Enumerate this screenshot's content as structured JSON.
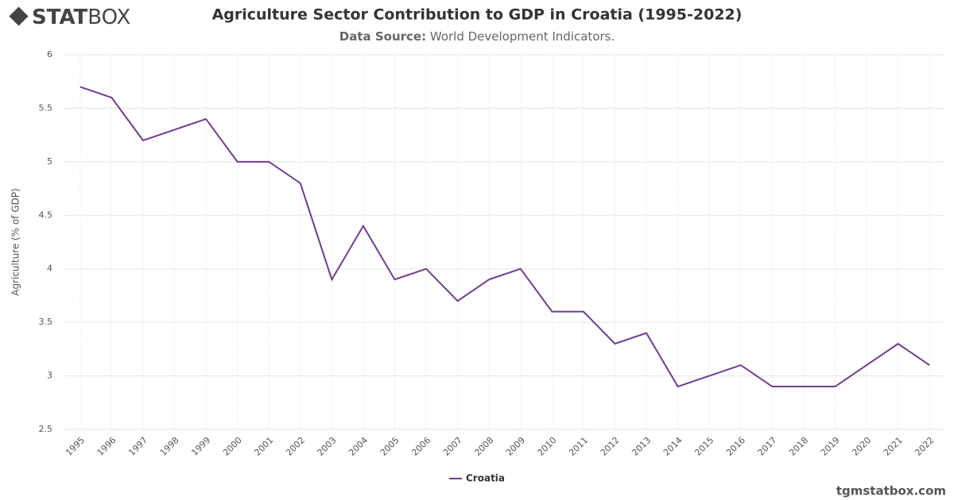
{
  "logo": {
    "bold": "STAT",
    "light": "BOX"
  },
  "watermark": "tgmstatbox.com",
  "chart_data": {
    "type": "line",
    "title": "Agriculture Sector Contribution to GDP in Croatia (1995-2022)",
    "subtitle_label": "Data Source:",
    "subtitle": "World Development Indicators.",
    "y_label": "Agriculture (% of GDP)",
    "categories": [
      "1995",
      "1996",
      "1997",
      "1998",
      "1999",
      "2000",
      "2001",
      "2002",
      "2003",
      "2004",
      "2005",
      "2006",
      "2007",
      "2008",
      "2009",
      "2010",
      "2011",
      "2012",
      "2013",
      "2014",
      "2015",
      "2016",
      "2017",
      "2018",
      "2019",
      "2020",
      "2021",
      "2022"
    ],
    "series": [
      {
        "name": "Croatia",
        "color": "#6f3d8c",
        "values": [
          5.7,
          5.6,
          5.2,
          5.3,
          5.4,
          5.0,
          5.0,
          4.8,
          3.9,
          4.4,
          3.9,
          4.0,
          3.7,
          3.9,
          4.0,
          3.6,
          3.6,
          3.3,
          3.4,
          2.9,
          3.0,
          3.1,
          2.9,
          2.9,
          2.9,
          3.1,
          3.3,
          3.1
        ]
      }
    ],
    "ylim": [
      2.5,
      6
    ],
    "yticks": [
      2.5,
      3,
      3.5,
      4,
      4.5,
      5,
      5.5,
      6
    ],
    "grid": true,
    "legend": "bottom"
  }
}
